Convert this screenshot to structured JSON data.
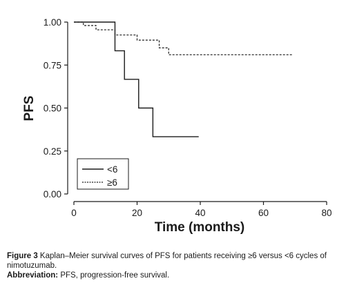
{
  "chart_data": {
    "type": "line",
    "title": "",
    "xlabel": "Time (months)",
    "ylabel": "PFS",
    "xlim": [
      0,
      80
    ],
    "ylim": [
      0,
      1
    ],
    "x_ticks": [
      "0",
      "20",
      "40",
      "60",
      "80"
    ],
    "y_ticks": [
      "0.00",
      "0.25",
      "0.50",
      "0.75",
      "1.00"
    ],
    "grid": false,
    "legend_position": "bottom-left",
    "series": [
      {
        "name": "<6",
        "style": "solid",
        "color": "#1a1a1a",
        "steps": [
          {
            "x": 0,
            "y": 1.0
          },
          {
            "x": 13,
            "y": 0.833
          },
          {
            "x": 16,
            "y": 0.667
          },
          {
            "x": 20.5,
            "y": 0.5
          },
          {
            "x": 25,
            "y": 0.333
          },
          {
            "x": 39.5,
            "y": 0.333
          }
        ]
      },
      {
        "name": "≥6",
        "style": "dashed",
        "color": "#1a1a1a",
        "steps": [
          {
            "x": 0,
            "y": 1.0
          },
          {
            "x": 3,
            "y": 0.98
          },
          {
            "x": 7,
            "y": 0.955
          },
          {
            "x": 13,
            "y": 0.925
          },
          {
            "x": 20,
            "y": 0.895
          },
          {
            "x": 27,
            "y": 0.85
          },
          {
            "x": 30,
            "y": 0.81
          },
          {
            "x": 69,
            "y": 0.81
          }
        ]
      }
    ]
  },
  "caption": {
    "figure_label": "Figure 3",
    "figure_text": " Kaplan–Meier survival curves of PFS for patients receiving ≥6 versus <6 cycles of nimotuzumab.",
    "abbrev_label": "Abbreviation:",
    "abbrev_text": " PFS, progression-free survival."
  }
}
